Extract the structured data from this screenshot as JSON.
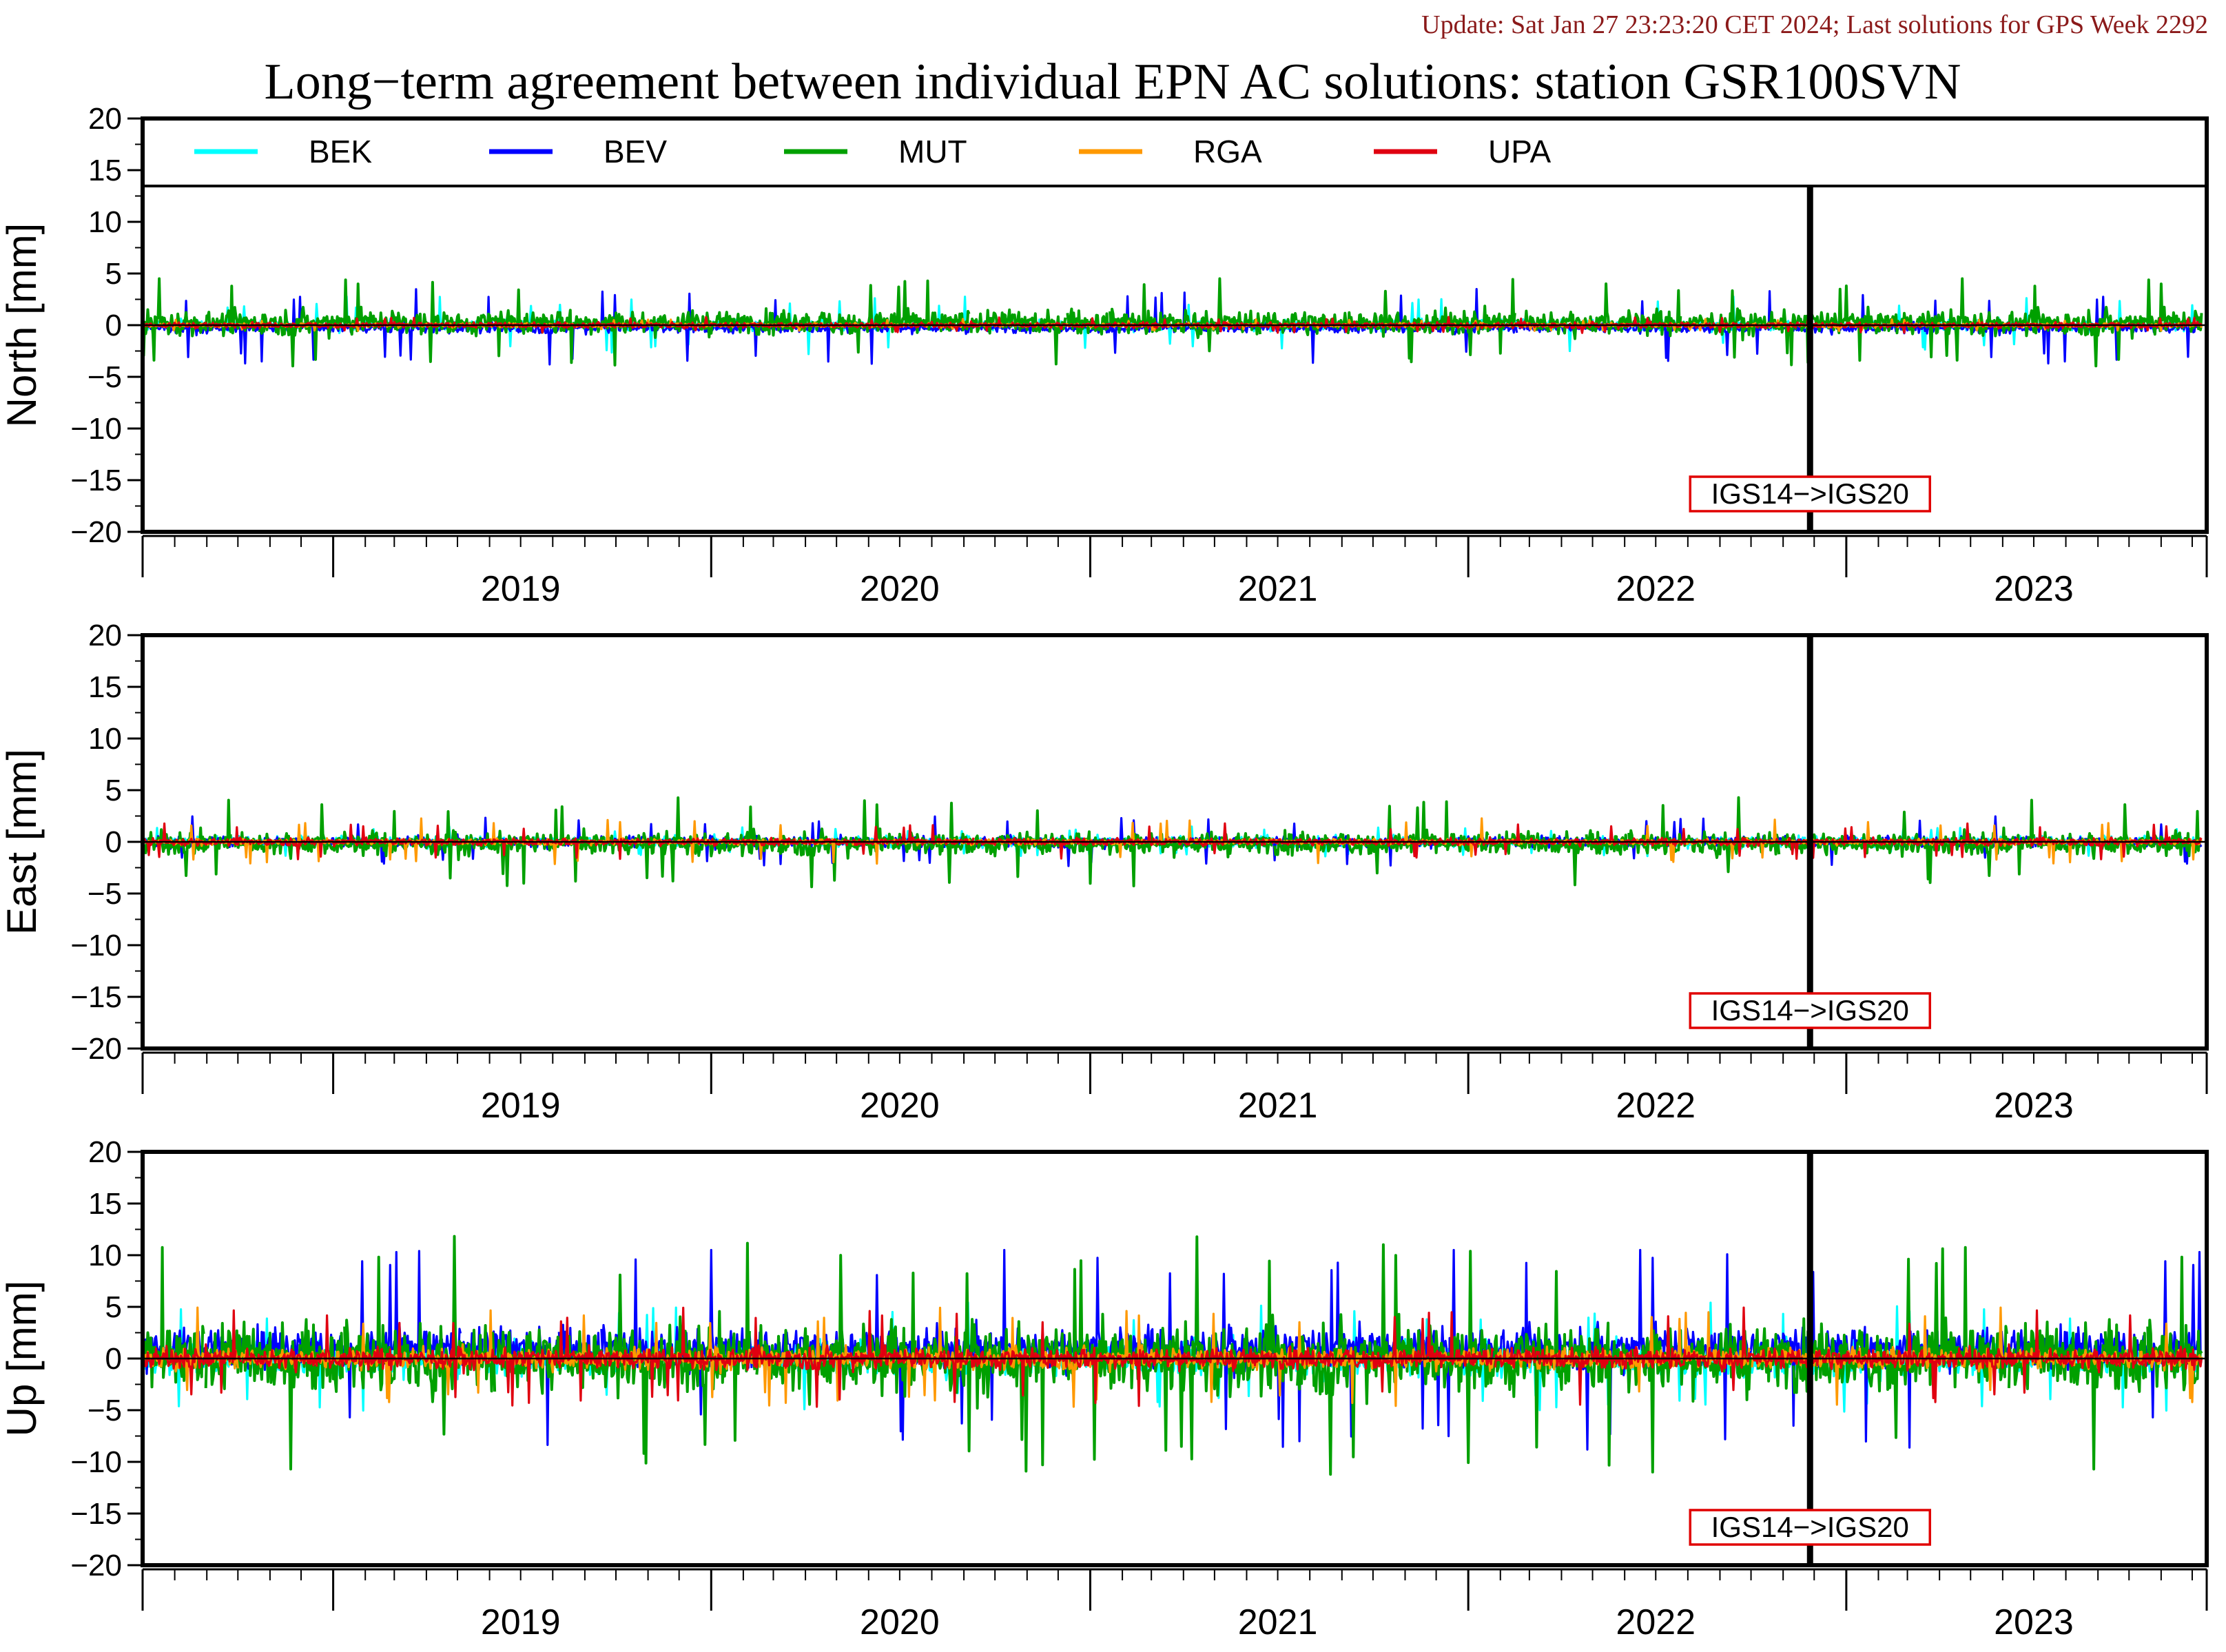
{
  "header": {
    "update": "Update: Sat Jan 27 23:23:20 CET 2024; Last solutions for GPS Week 2292",
    "title": "Long−term agreement between individual EPN AC solutions: station GSR100SVN"
  },
  "colors": {
    "BEK": "#00ffff",
    "BEV": "#0000ff",
    "MUT": "#00a000",
    "RGA": "#ff9900",
    "UPA": "#e00010",
    "annotation_box": "#e00000"
  },
  "legend": [
    "BEK",
    "BEV",
    "MUT",
    "RGA",
    "UPA"
  ],
  "chart_data": [
    {
      "type": "line",
      "title": "",
      "xlabel": "",
      "ylabel": "North [mm]",
      "x_range": [
        "2018-07-01",
        "2023-12-15"
      ],
      "ylim": [
        -20,
        20
      ],
      "yticks": [
        "20",
        "15",
        "10",
        "5",
        "0",
        "−5",
        "−10",
        "−15",
        "−20"
      ],
      "year_labels": [
        "2019",
        "2020",
        "2021",
        "2022",
        "2023"
      ],
      "frame_change": {
        "date": "2022-11-27",
        "label": "IGS14−>IGS20"
      },
      "series": [
        {
          "name": "BEK",
          "typical_range_mm": [
            -0.8,
            0.8
          ],
          "max_abs_mm": 2.8
        },
        {
          "name": "BEV",
          "typical_range_mm": [
            -1.0,
            0.5
          ],
          "max_abs_mm": 3.8
        },
        {
          "name": "MUT",
          "typical_range_mm": [
            -1.5,
            2.0
          ],
          "max_abs_mm": 4.5
        },
        {
          "name": "RGA",
          "typical_range_mm": [
            -0.3,
            0.3
          ],
          "max_abs_mm": 0.6
        },
        {
          "name": "UPA",
          "typical_range_mm": [
            -0.4,
            0.4
          ],
          "max_abs_mm": 0.8
        }
      ]
    },
    {
      "type": "line",
      "title": "",
      "xlabel": "",
      "ylabel": "East [mm]",
      "x_range": [
        "2018-07-01",
        "2023-12-15"
      ],
      "ylim": [
        -20,
        20
      ],
      "yticks": [
        "20",
        "15",
        "10",
        "5",
        "0",
        "−5",
        "−10",
        "−15",
        "−20"
      ],
      "year_labels": [
        "2019",
        "2020",
        "2021",
        "2022",
        "2023"
      ],
      "frame_change": {
        "date": "2022-11-27",
        "label": "IGS14−>IGS20"
      },
      "series": [
        {
          "name": "BEK",
          "typical_range_mm": [
            -0.8,
            0.8
          ],
          "max_abs_mm": 1.5
        },
        {
          "name": "BEV",
          "typical_range_mm": [
            -0.8,
            0.8
          ],
          "max_abs_mm": 2.5
        },
        {
          "name": "MUT",
          "typical_range_mm": [
            -1.8,
            1.5
          ],
          "max_abs_mm": 4.5
        },
        {
          "name": "RGA",
          "typical_range_mm": [
            -0.4,
            0.4
          ],
          "max_abs_mm": 2.3
        },
        {
          "name": "UPA",
          "typical_range_mm": [
            -0.5,
            0.5
          ],
          "max_abs_mm": 1.8
        }
      ]
    },
    {
      "type": "line",
      "title": "",
      "xlabel": "",
      "ylabel": "Up [mm]",
      "x_range": [
        "2018-07-01",
        "2023-12-15"
      ],
      "ylim": [
        -20,
        20
      ],
      "yticks": [
        "20",
        "15",
        "10",
        "5",
        "0",
        "−5",
        "−10",
        "−15",
        "−20"
      ],
      "year_labels": [
        "2019",
        "2020",
        "2021",
        "2022",
        "2023"
      ],
      "frame_change": {
        "date": "2022-11-27",
        "label": "IGS14−>IGS20"
      },
      "series": [
        {
          "name": "BEK",
          "typical_range_mm": [
            -2.5,
            2.5
          ],
          "max_abs_mm": 5.5
        },
        {
          "name": "BEV",
          "typical_range_mm": [
            -2.0,
            4.0
          ],
          "max_abs_mm": 10.5
        },
        {
          "name": "MUT",
          "typical_range_mm": [
            -5.0,
            5.0
          ],
          "max_abs_mm": 12.0
        },
        {
          "name": "RGA",
          "typical_range_mm": [
            -1.5,
            1.5
          ],
          "max_abs_mm": 5.0
        },
        {
          "name": "UPA",
          "typical_range_mm": [
            -1.5,
            1.5
          ],
          "max_abs_mm": 5.0
        }
      ]
    }
  ]
}
